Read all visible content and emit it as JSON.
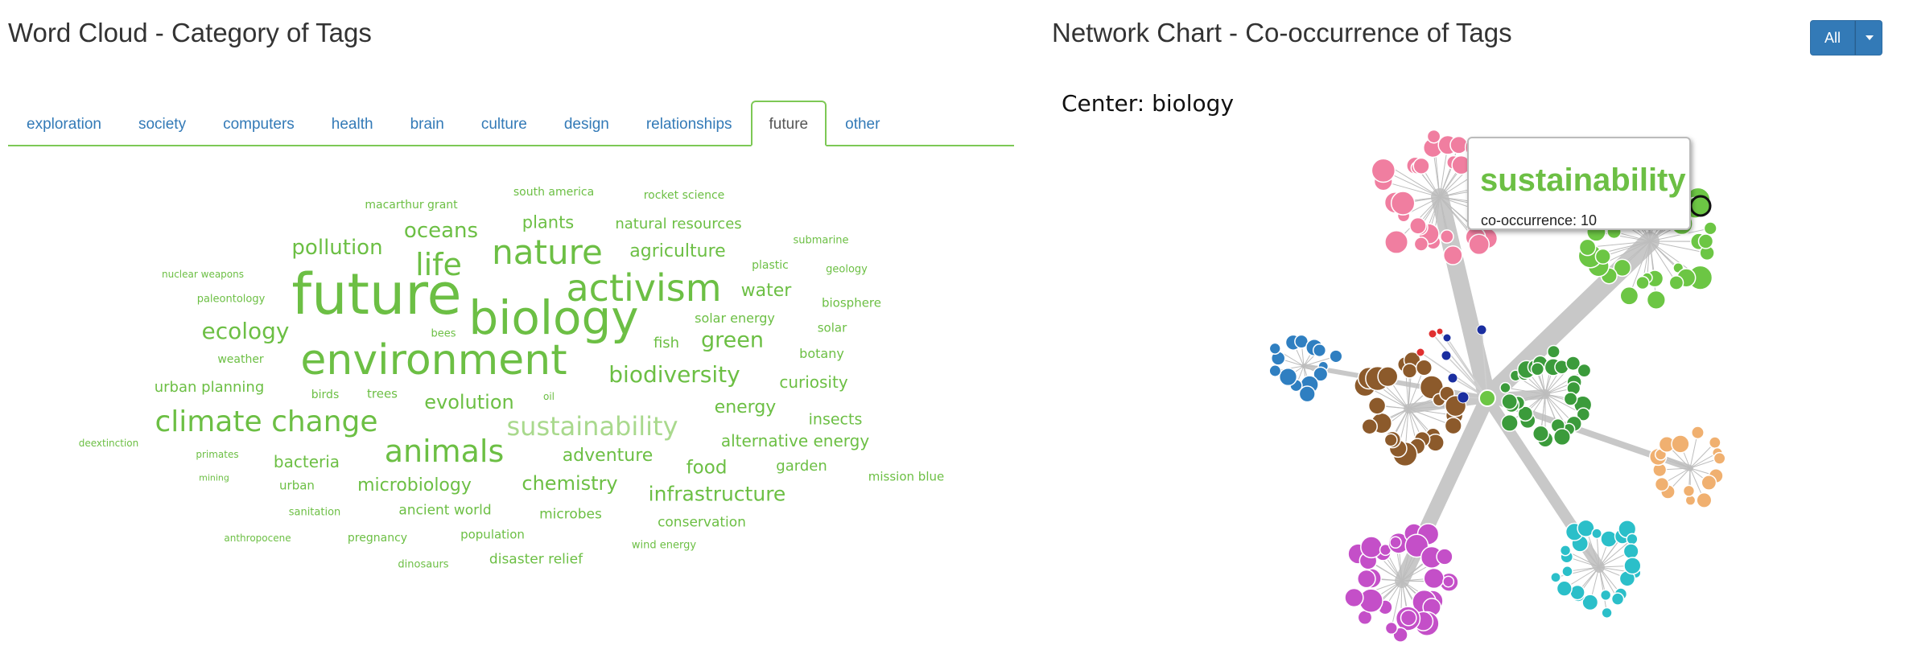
{
  "word_cloud": {
    "title": "Word Cloud - Category of Tags",
    "tabs": [
      {
        "label": "exploration",
        "active": false
      },
      {
        "label": "society",
        "active": false
      },
      {
        "label": "computers",
        "active": false
      },
      {
        "label": "health",
        "active": false
      },
      {
        "label": "brain",
        "active": false
      },
      {
        "label": "culture",
        "active": false
      },
      {
        "label": "design",
        "active": false
      },
      {
        "label": "relationships",
        "active": false
      },
      {
        "label": "future",
        "active": true
      },
      {
        "label": "other",
        "active": false
      }
    ],
    "word_color": "#6cbf44",
    "highlight_word": "sustainability",
    "words": [
      "macarthur grant",
      "south america",
      "rocket science",
      "plants",
      "natural resources",
      "pollution",
      "oceans",
      "nature",
      "agriculture",
      "submarine",
      "life",
      "plastic",
      "geology",
      "nuclear weapons",
      "future",
      "activism",
      "water",
      "paleontology",
      "biology",
      "biosphere",
      "solar energy",
      "ecology",
      "solar",
      "bees",
      "fish",
      "green",
      "environment",
      "weather",
      "botany",
      "biodiversity",
      "urban planning",
      "curiosity",
      "birds",
      "trees",
      "evolution",
      "oil",
      "energy",
      "climate change",
      "sustainability",
      "insects",
      "deextinction",
      "alternative energy",
      "animals",
      "primates",
      "adventure",
      "bacteria",
      "food",
      "garden",
      "mining",
      "mission blue",
      "chemistry",
      "urban",
      "microbiology",
      "infrastructure",
      "sanitation",
      "ancient world",
      "microbes",
      "conservation",
      "anthropocene",
      "pregnancy",
      "population",
      "wind energy",
      "disaster relief",
      "dinosaurs"
    ]
  },
  "network": {
    "title": "Network Chart - Co-occurrence of Tags",
    "filter_button": "All",
    "center_label": "Center: biology",
    "tooltip": {
      "tag": "sustainability",
      "text": "co-occurrence: 10"
    },
    "cluster_colors": {
      "pink": "#f07ea0",
      "light_green": "#6cc644",
      "dark_green": "#3b9b3b",
      "brown": "#8c5a2b",
      "blue": "#2f7fc1",
      "orange": "#f0b070",
      "teal": "#2bbfc9",
      "magenta": "#c44fc8",
      "red": "#e03030",
      "navy": "#1a2ea0"
    }
  }
}
